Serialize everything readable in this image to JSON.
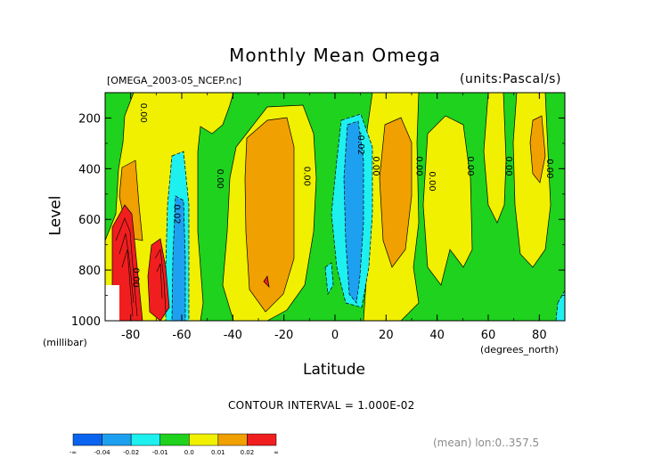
{
  "title": "Monthly Mean Omega",
  "file_label": "[OMEGA_2003-05_NCEP.nc]",
  "units_label": "(units:Pascal/s)",
  "ylabel": "Level",
  "yunit": "(millibar)",
  "xlabel": "Latitude",
  "xunit": "(degrees_north)",
  "contour_interval": "CONTOUR INTERVAL = 1.000E-02",
  "mean_label": "(mean) lon:0..357.5",
  "colors": {
    "lt_m04": "#0a64f0",
    "m04_m02": "#1ea0f0",
    "m02_m01": "#1ef0f0",
    "m01_0": "#1ed21e",
    "0_001": "#f0f000",
    "001_002": "#f0a000",
    "gt_002": "#f01e1e"
  },
  "chart_data": {
    "type": "heatmap",
    "title": "Monthly Mean Omega",
    "xlabel": "Latitude",
    "ylabel": "Level",
    "xlim": [
      -90,
      90
    ],
    "ylim": [
      1000,
      100
    ],
    "x_ticks": [
      -80,
      -60,
      -40,
      -20,
      0,
      20,
      40,
      60,
      80
    ],
    "x_tick_labels": [
      "-80",
      "-60",
      "-40",
      "-20",
      "0",
      "20",
      "40",
      "60",
      "80"
    ],
    "y_ticks": [
      200,
      400,
      600,
      800,
      1000
    ],
    "y_tick_labels": [
      "200",
      "400",
      "600",
      "800",
      "1000"
    ],
    "contour_labels": [
      {
        "text": "0.00",
        "x": -76,
        "y": 180
      },
      {
        "text": "0.02",
        "x": -63,
        "y": 580
      },
      {
        "text": "0.00",
        "x": -46,
        "y": 440
      },
      {
        "text": "0.00",
        "x": -12,
        "y": 430
      },
      {
        "text": "-0.02",
        "x": 9,
        "y": 300
      },
      {
        "text": "0.00",
        "x": 15,
        "y": 390
      },
      {
        "text": "0.00",
        "x": 32,
        "y": 390
      },
      {
        "text": "0.00",
        "x": 37,
        "y": 450
      },
      {
        "text": "0.00",
        "x": 52,
        "y": 390
      },
      {
        "text": "0.00",
        "x": 67,
        "y": 390
      },
      {
        "text": "0.00",
        "x": 83,
        "y": 400
      },
      {
        "text": "0.00",
        "x": -79,
        "y": 830
      }
    ],
    "colorbar": {
      "labels": [
        "-∞",
        "-0.04",
        "-0.02",
        "-0.01",
        "0.0",
        "0.01",
        "0.02",
        "∞"
      ],
      "bins": [
        "< -0.04",
        "-0.04 to -0.02",
        "-0.02 to -0.01",
        "-0.01 to 0.0",
        "0.0 to 0.01",
        "0.01 to 0.02",
        "> 0.02"
      ]
    },
    "grid": false
  }
}
